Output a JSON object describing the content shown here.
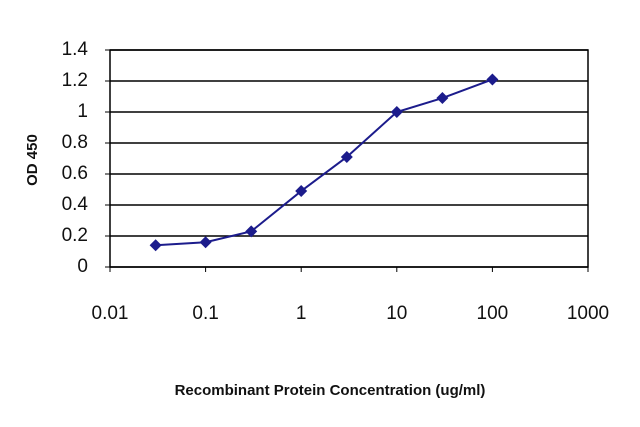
{
  "chart_data": {
    "type": "line",
    "x_label": "Recombinant Protein Concentration (ug/ml)",
    "y_label": "OD 450",
    "x": [
      0.03,
      0.1,
      0.3,
      1,
      3,
      10,
      30,
      100
    ],
    "values": [
      0.14,
      0.16,
      0.23,
      0.49,
      0.71,
      1.0,
      1.09,
      1.21
    ],
    "color": "#1c1c8c",
    "xscale": "log",
    "xlim": [
      0.01,
      1000
    ],
    "xticks": [
      0.01,
      0.1,
      1,
      10,
      100,
      1000
    ],
    "ylim": [
      0,
      1.4
    ],
    "yticks": [
      0,
      0.2,
      0.4,
      0.6,
      0.8,
      1,
      1.2,
      1.4
    ],
    "grid": true
  }
}
